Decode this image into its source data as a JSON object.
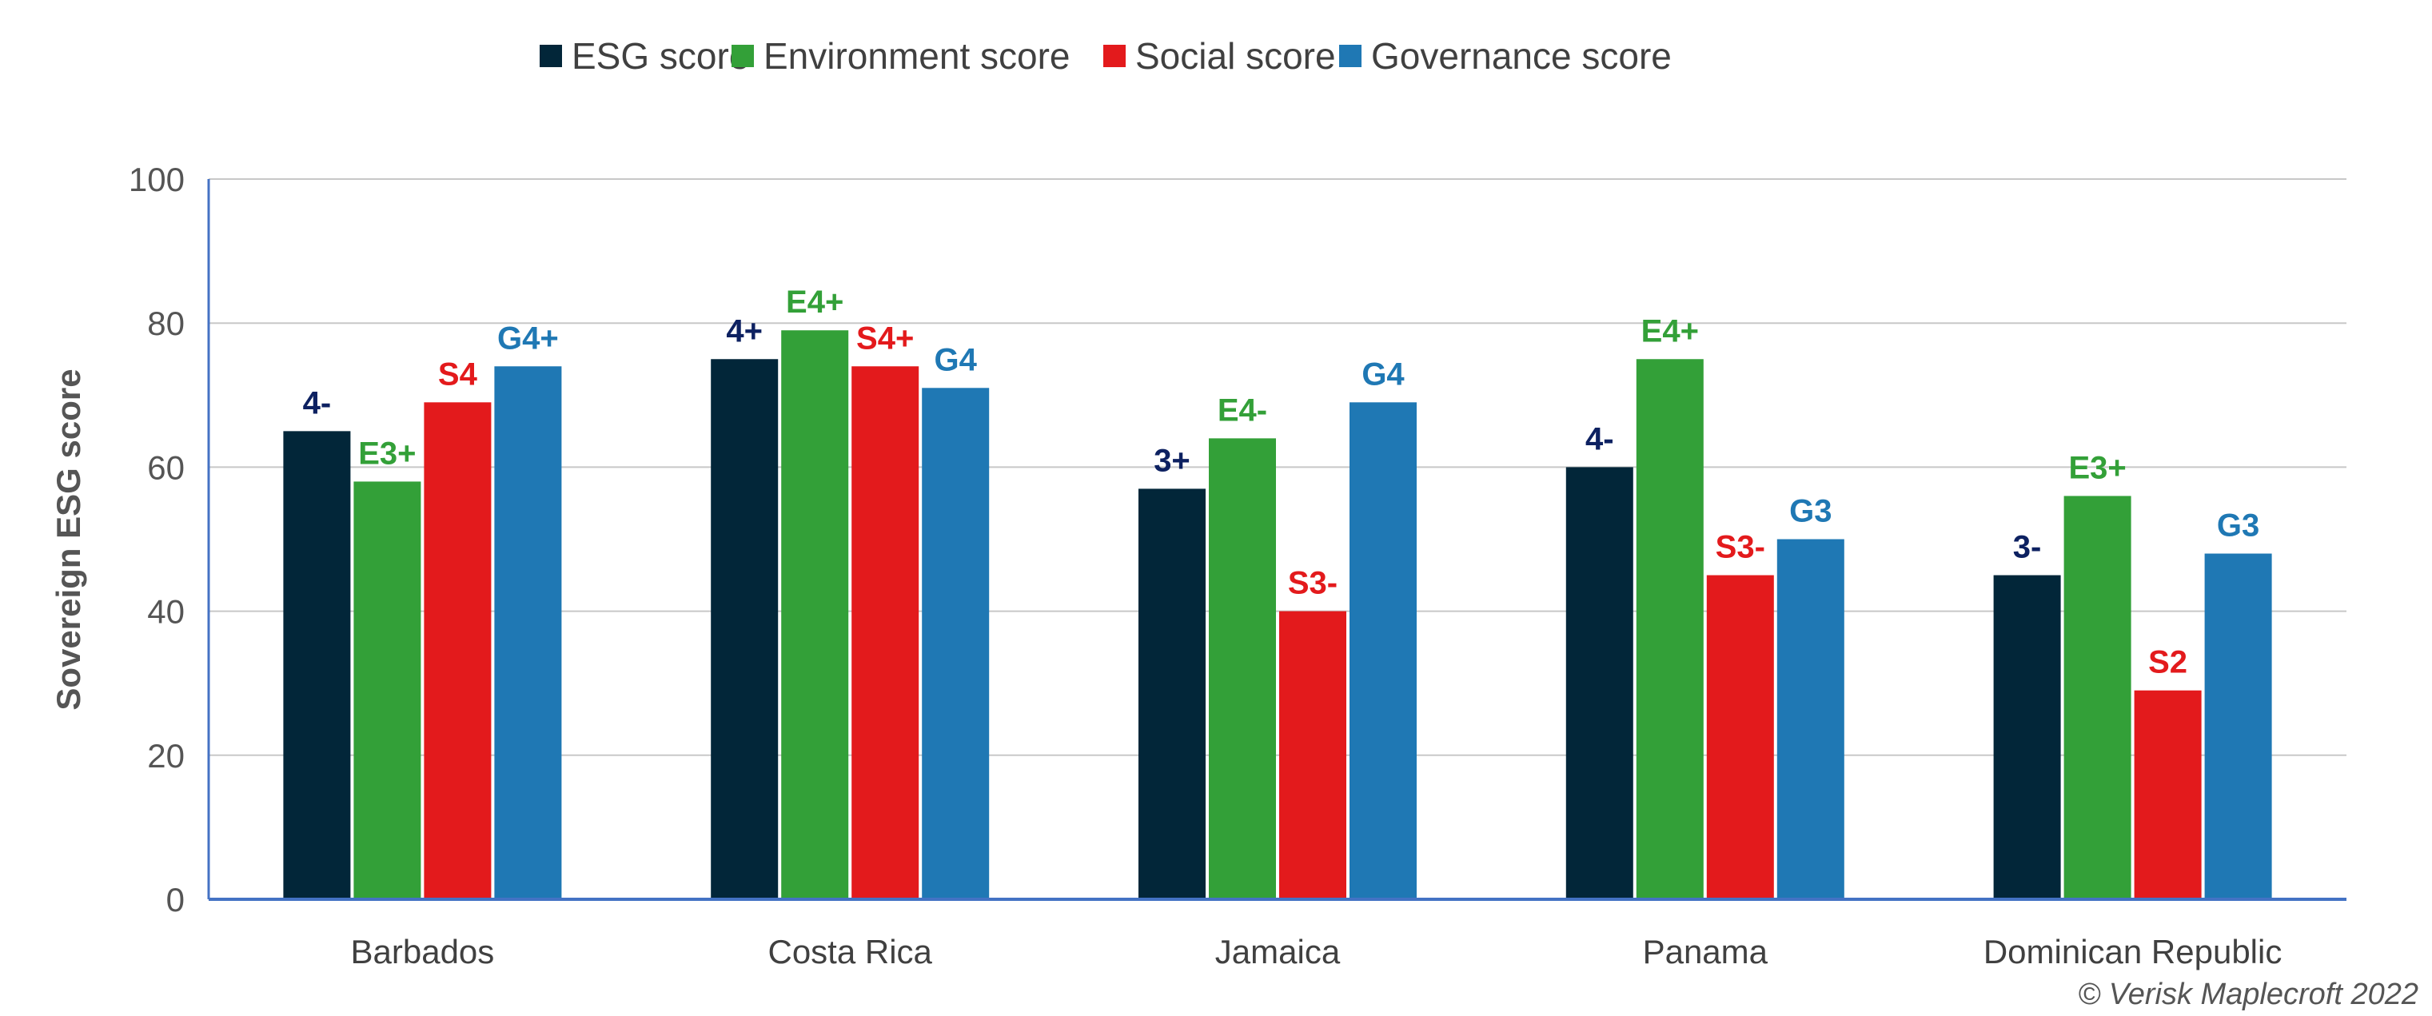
{
  "chart_data": {
    "type": "bar",
    "title": "",
    "xlabel": "",
    "ylabel": "Sovereign ESG score",
    "ylim": [
      0,
      100
    ],
    "yticks": [
      0,
      20,
      40,
      60,
      80,
      100
    ],
    "grid": true,
    "legend_position": "top",
    "categories": [
      "Barbados",
      "Costa Rica",
      "Jamaica",
      "Panama",
      "Dominican Republic"
    ],
    "series": [
      {
        "name": "ESG score",
        "color": "#022639",
        "label_color": "#0d2161",
        "values": [
          65,
          75,
          57,
          60,
          45
        ],
        "labels": [
          "4-",
          "4+",
          "3+",
          "4-",
          "3-"
        ]
      },
      {
        "name": "Environment score",
        "color": "#33a038",
        "label_color": "#33a038",
        "values": [
          58,
          79,
          64,
          75,
          56
        ],
        "labels": [
          "E3+",
          "E4+",
          "E4-",
          "E4+",
          "E3+"
        ]
      },
      {
        "name": "Social score",
        "color": "#e31a1c",
        "label_color": "#e31a1c",
        "values": [
          69,
          74,
          40,
          45,
          29
        ],
        "labels": [
          "S4",
          "S4+",
          "S3-",
          "S3-",
          "S2"
        ]
      },
      {
        "name": "Governance score",
        "color": "#1f78b4",
        "label_color": "#1f78b4",
        "values": [
          74,
          71,
          69,
          50,
          48
        ],
        "labels": [
          "G4+",
          "G4",
          "G4",
          "G3",
          "G3"
        ]
      }
    ],
    "axis_color": "#4472c4",
    "grid_color": "#c8c8c8"
  },
  "footer": {
    "copyright": "© Verisk Maplecroft 2022"
  }
}
